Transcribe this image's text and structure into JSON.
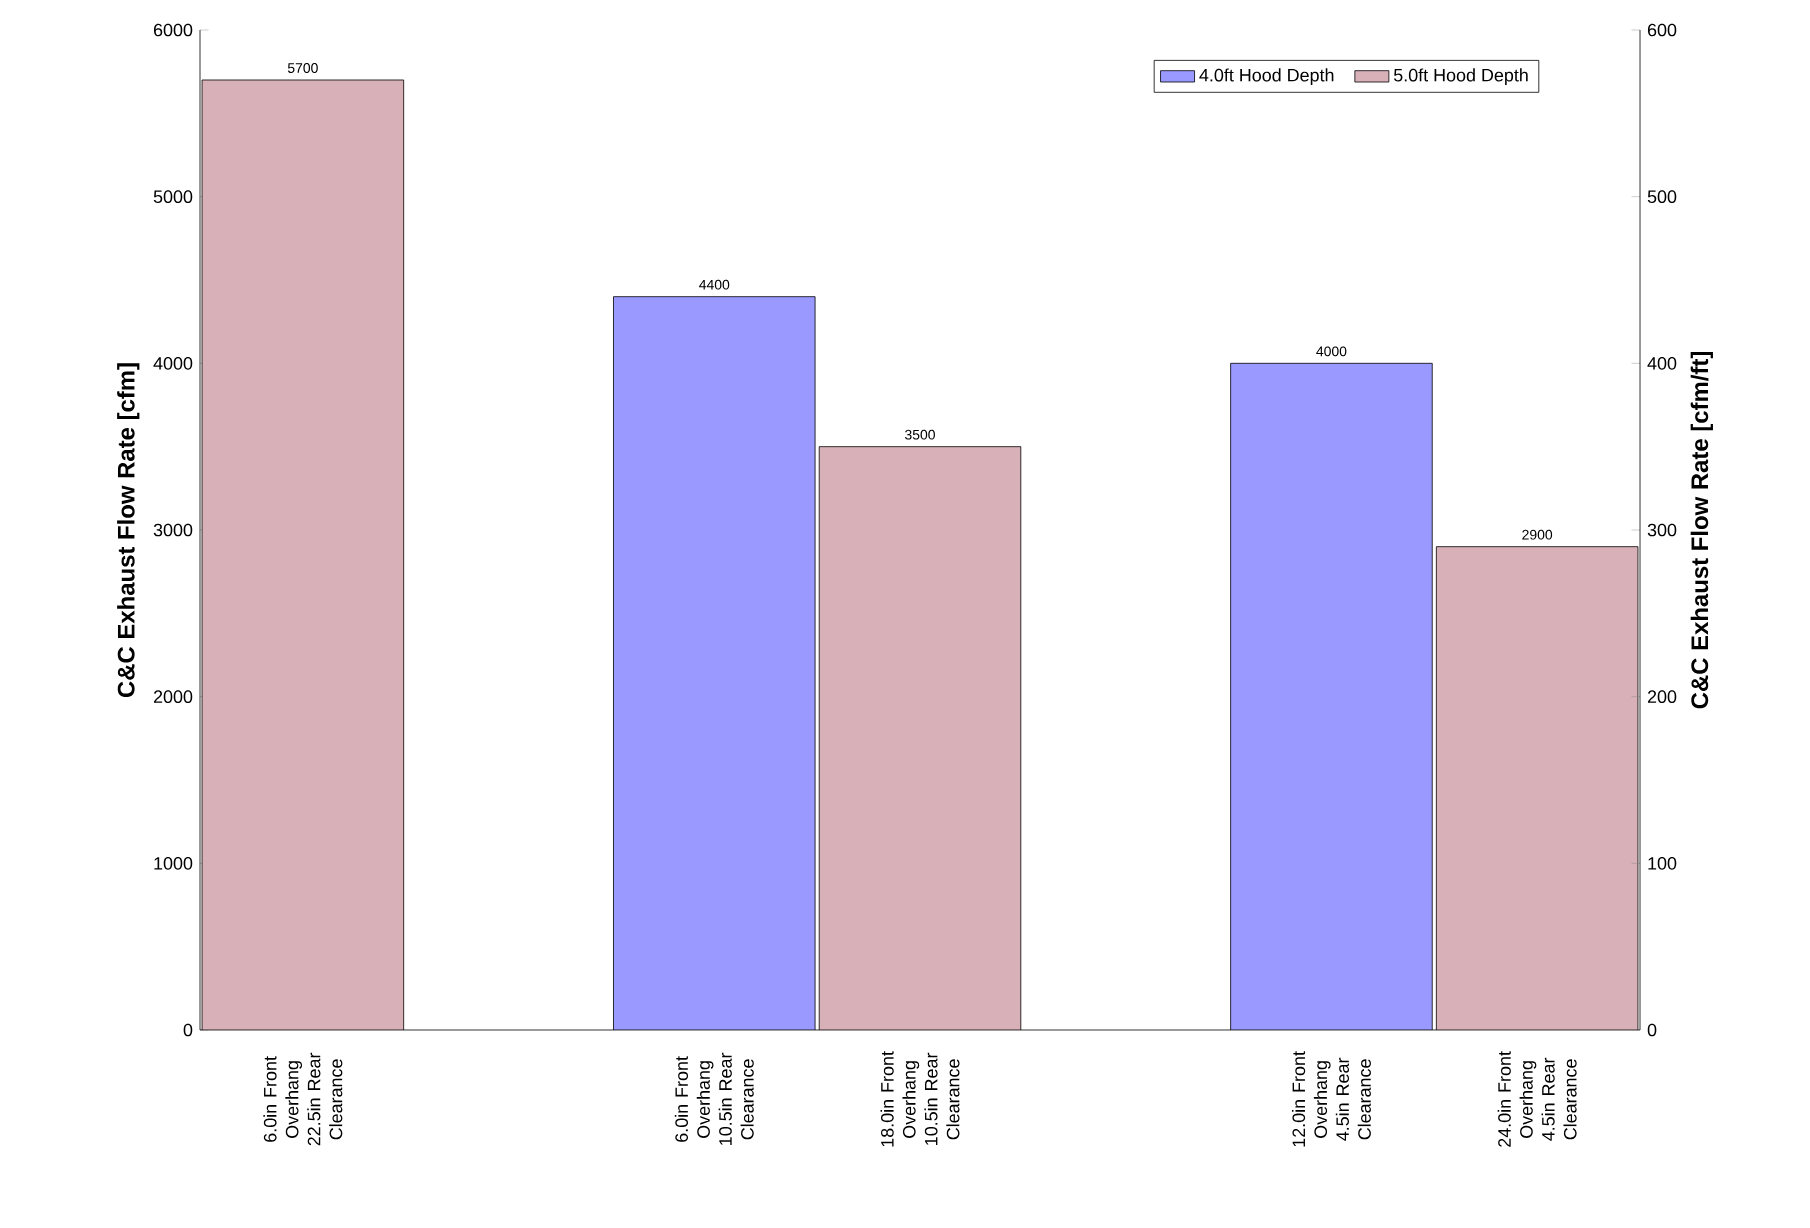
{
  "chart_data": {
    "type": "bar",
    "categories": [
      "6.0in Front Overhang 22.5in Rear Clearance",
      null,
      "6.0in Front Overhang 10.5in Rear Clearance",
      "18.0in Front Overhang 10.5in Rear Clearance",
      null,
      "12.0in Front Overhang 4.5in Rear Clearance",
      "24.0in Front Overhang 4.5in Rear Clearance"
    ],
    "series": [
      {
        "name": "4.0ft Hood Depth",
        "color": "#9999ff",
        "values": [
          null,
          null,
          4400,
          null,
          null,
          4000,
          null
        ]
      },
      {
        "name": "5.0ft Hood Depth",
        "color": "#d8b0b8",
        "values": [
          5700,
          null,
          null,
          3500,
          null,
          null,
          2900
        ]
      }
    ],
    "ylabel": "C&C Exhaust Flow Rate [cfm]",
    "y2label": "C&C Exhaust Flow Rate [cfm/ft]",
    "ylim": [
      0,
      6000
    ],
    "yticks": [
      0,
      1000,
      2000,
      3000,
      4000,
      5000,
      6000
    ],
    "y2lim": [
      0,
      600
    ],
    "y2ticks": [
      0,
      100,
      200,
      300,
      400,
      500,
      600
    ],
    "data_labels": true,
    "legend": "top right"
  }
}
